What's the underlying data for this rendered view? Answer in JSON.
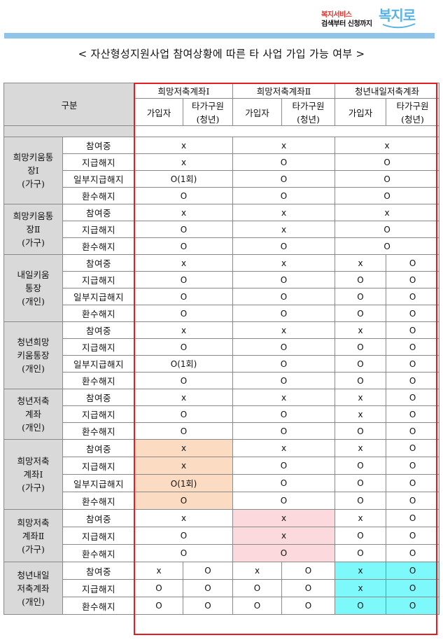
{
  "logo": {
    "line1": "복지서비스",
    "line2": "검색부터 신청까지",
    "mark": "복지로"
  },
  "title": "< 자산형성지원사업 참여상황에 따른 타 사업 가입 가능 여부 >",
  "header": {
    "corner": "구분",
    "programs": [
      "희망저축계좌Ⅰ",
      "희망저축계좌Ⅱ",
      "청년내일저축계좌"
    ],
    "sub": [
      "가입자",
      "타가구원(청년)"
    ]
  },
  "groups": [
    {
      "name": "희망키움통장Ⅰ(가구)",
      "rows": [
        {
          "status": "참여중",
          "vals": [
            "x",
            "x",
            "x"
          ]
        },
        {
          "status": "지급해지",
          "vals": [
            "x",
            "O",
            "O"
          ]
        },
        {
          "status": "일부지급해지",
          "vals": [
            "O(1회)",
            "O",
            "O"
          ]
        },
        {
          "status": "환수해지",
          "vals": [
            "O",
            "O",
            "O"
          ]
        }
      ]
    },
    {
      "name": "희망키움통장Ⅱ(가구)",
      "rows": [
        {
          "status": "참여중",
          "vals": [
            "x",
            "x",
            "x"
          ]
        },
        {
          "status": "지급해지",
          "vals": [
            "O",
            "x",
            "O"
          ]
        },
        {
          "status": "환수해지",
          "vals": [
            "O",
            "O",
            "O"
          ]
        }
      ]
    },
    {
      "name": "내일키움통장(개인)",
      "rows": [
        {
          "status": "참여중",
          "vals": [
            "x",
            "x",
            "x",
            "O"
          ]
        },
        {
          "status": "지급해지",
          "vals": [
            "O",
            "O",
            "O",
            "O"
          ]
        },
        {
          "status": "일부지급해지",
          "vals": [
            "O",
            "O",
            "O",
            "O"
          ]
        },
        {
          "status": "환수해지",
          "vals": [
            "O",
            "O",
            "O",
            "O"
          ]
        }
      ]
    },
    {
      "name": "청년희망키움통장(개인)",
      "rows": [
        {
          "status": "참여중",
          "vals": [
            "x",
            "x",
            "x",
            "O"
          ]
        },
        {
          "status": "지급해지",
          "vals": [
            "O",
            "O",
            "O",
            "O"
          ]
        },
        {
          "status": "일부지급해지",
          "vals": [
            "O(1회)",
            "O",
            "O",
            "O"
          ]
        },
        {
          "status": "환수해지",
          "vals": [
            "O",
            "O",
            "O",
            "O"
          ]
        }
      ]
    },
    {
      "name": "청년저축계좌(개인)",
      "rows": [
        {
          "status": "참여중",
          "vals": [
            "x",
            "x",
            "x",
            "O"
          ]
        },
        {
          "status": "지급해지",
          "vals": [
            "O",
            "O",
            "x",
            "O"
          ]
        },
        {
          "status": "환수해지",
          "vals": [
            "O",
            "O",
            "O",
            "O"
          ]
        }
      ]
    },
    {
      "name": "희망저축계좌Ⅰ(가구)",
      "rows": [
        {
          "status": "참여중",
          "vals": [
            "x",
            "x",
            "x",
            "O"
          ]
        },
        {
          "status": "지급해지",
          "vals": [
            "x",
            "O",
            "O",
            "O"
          ]
        },
        {
          "status": "일부지급해지",
          "vals": [
            "O(1회)",
            "O",
            "O",
            "O"
          ]
        },
        {
          "status": "환수해지",
          "vals": [
            "O",
            "O",
            "O",
            "O"
          ]
        }
      ]
    },
    {
      "name": "희망저축계좌Ⅱ(가구)",
      "rows": [
        {
          "status": "참여중",
          "vals": [
            "x",
            "x",
            "x",
            "O"
          ]
        },
        {
          "status": "지급해지",
          "vals": [
            "O",
            "x",
            "O",
            "O"
          ]
        },
        {
          "status": "환수해지",
          "vals": [
            "O",
            "O",
            "O",
            "O"
          ]
        }
      ]
    },
    {
      "name": "청년내일저축계좌(개인)",
      "rows": [
        {
          "status": "참여중",
          "vals": [
            "x",
            "O",
            "x",
            "O",
            "x",
            "O"
          ]
        },
        {
          "status": "지급해지",
          "vals": [
            "O",
            "O",
            "O",
            "O",
            "x",
            "O"
          ]
        },
        {
          "status": "환수해지",
          "vals": [
            "O",
            "O",
            "O",
            "O",
            "O",
            "O"
          ]
        }
      ]
    }
  ],
  "highlight_colors": {
    "orange": "#fbdcc3",
    "pink": "#fbd9dd",
    "cyan": "#7df9fb",
    "frame": "#e41d23"
  }
}
